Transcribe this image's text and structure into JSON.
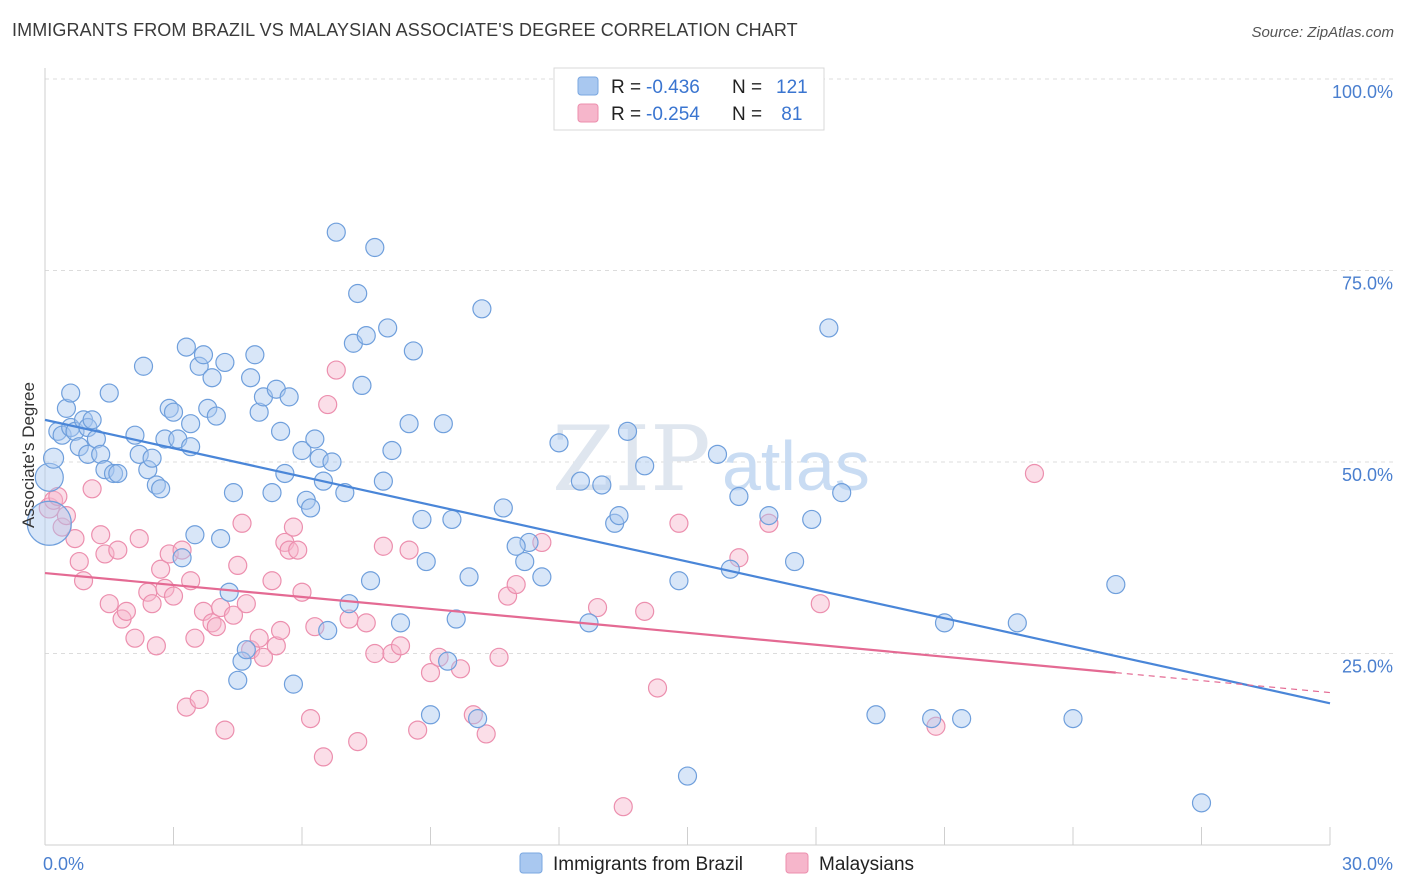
{
  "header": {
    "title": "IMMIGRANTS FROM BRAZIL VS MALAYSIAN ASSOCIATE'S DEGREE CORRELATION CHART",
    "source": "Source: ZipAtlas.com"
  },
  "watermark": {
    "zip": "ZIP",
    "atlas": "atlas"
  },
  "legend": {
    "rows": [
      {
        "r_label": "R =",
        "r_value": "-0.436",
        "n_label": "N =",
        "n_value": "121",
        "color": "#a9c8f0"
      },
      {
        "r_label": "R =",
        "r_value": "-0.254",
        "n_label": "N =",
        "n_value": " 81",
        "color": "#f6b6cb"
      }
    ]
  },
  "bottom_legend": {
    "items": [
      {
        "label": "Immigrants from Brazil",
        "color": "#a9c8f0"
      },
      {
        "label": "Malaysians",
        "color": "#f6b6cb"
      }
    ]
  },
  "chart_data": {
    "type": "scatter",
    "title": "IMMIGRANTS FROM BRAZIL VS MALAYSIAN ASSOCIATE'S DEGREE CORRELATION CHART",
    "xlabel": "",
    "ylabel": "Associate's Degree",
    "xlim": [
      0,
      30
    ],
    "ylim": [
      0,
      100
    ],
    "x_tick_labels": [
      "0.0%",
      "30.0%"
    ],
    "y_tick_labels": [
      "100.0%",
      "75.0%",
      "50.0%",
      "25.0%"
    ],
    "y_ticks": [
      100,
      75,
      50,
      25
    ],
    "grid": true,
    "legend_position": "top-center",
    "colors": {
      "brazil": "#4a86d8",
      "brazil_fill": "#a9c8f0",
      "malaysian": "#e46a93",
      "malaysian_fill": "#f6b6cb"
    },
    "series": [
      {
        "name": "Immigrants from Brazil",
        "trend": {
          "x": [
            0,
            30
          ],
          "y": [
            55.5,
            18.5
          ]
        },
        "points": [
          [
            0.1,
            42,
            22
          ],
          [
            0.1,
            48,
            14
          ],
          [
            0.2,
            50.5,
            10
          ],
          [
            0.3,
            54,
            9
          ],
          [
            0.4,
            53.5,
            9
          ],
          [
            0.5,
            57,
            9
          ],
          [
            0.6,
            54.5,
            9
          ],
          [
            0.6,
            59,
            9
          ],
          [
            0.7,
            54,
            9
          ],
          [
            0.8,
            52,
            9
          ],
          [
            0.9,
            55.5,
            9
          ],
          [
            1.0,
            54.5,
            9
          ],
          [
            1.0,
            51,
            9
          ],
          [
            1.1,
            55.5,
            9
          ],
          [
            1.2,
            53,
            9
          ],
          [
            1.3,
            51,
            9
          ],
          [
            1.4,
            49,
            9
          ],
          [
            1.5,
            59,
            9
          ],
          [
            1.6,
            48.5,
            9
          ],
          [
            1.7,
            48.5,
            9
          ],
          [
            2.1,
            53.5,
            9
          ],
          [
            2.2,
            51,
            9
          ],
          [
            2.3,
            62.5,
            9
          ],
          [
            2.4,
            49,
            9
          ],
          [
            2.5,
            50.5,
            9
          ],
          [
            2.6,
            47,
            9
          ],
          [
            2.7,
            46.5,
            9
          ],
          [
            2.8,
            53,
            9
          ],
          [
            2.9,
            57,
            9
          ],
          [
            3.0,
            56.5,
            9
          ],
          [
            3.1,
            53,
            9
          ],
          [
            3.2,
            37.5,
            9
          ],
          [
            3.3,
            65,
            9
          ],
          [
            3.4,
            55,
            9
          ],
          [
            3.4,
            52,
            9
          ],
          [
            3.5,
            40.5,
            9
          ],
          [
            3.6,
            62.5,
            9
          ],
          [
            3.7,
            64,
            9
          ],
          [
            3.8,
            57,
            9
          ],
          [
            3.9,
            61,
            9
          ],
          [
            4.0,
            56,
            9
          ],
          [
            4.1,
            40,
            9
          ],
          [
            4.2,
            63,
            9
          ],
          [
            4.3,
            33,
            9
          ],
          [
            4.4,
            46,
            9
          ],
          [
            4.5,
            21.5,
            9
          ],
          [
            4.6,
            24,
            9
          ],
          [
            4.7,
            25.5,
            9
          ],
          [
            4.8,
            61,
            9
          ],
          [
            4.9,
            64,
            9
          ],
          [
            5.0,
            56.5,
            9
          ],
          [
            5.1,
            58.5,
            9
          ],
          [
            5.3,
            46,
            9
          ],
          [
            5.4,
            59.5,
            9
          ],
          [
            5.5,
            54,
            9
          ],
          [
            5.6,
            48.5,
            9
          ],
          [
            5.7,
            58.5,
            9
          ],
          [
            5.8,
            21,
            9
          ],
          [
            6.0,
            51.5,
            9
          ],
          [
            6.1,
            45,
            9
          ],
          [
            6.2,
            44,
            9
          ],
          [
            6.3,
            53,
            9
          ],
          [
            6.4,
            50.5,
            9
          ],
          [
            6.5,
            47.5,
            9
          ],
          [
            6.6,
            28,
            9
          ],
          [
            6.7,
            50,
            9
          ],
          [
            6.8,
            80,
            9
          ],
          [
            7.0,
            46,
            9
          ],
          [
            7.1,
            31.5,
            9
          ],
          [
            7.2,
            65.5,
            9
          ],
          [
            7.3,
            72,
            9
          ],
          [
            7.4,
            60,
            9
          ],
          [
            7.5,
            66.5,
            9
          ],
          [
            7.6,
            34.5,
            9
          ],
          [
            7.7,
            78,
            9
          ],
          [
            7.9,
            47.5,
            9
          ],
          [
            8.0,
            67.5,
            9
          ],
          [
            8.1,
            51.5,
            9
          ],
          [
            8.3,
            29,
            9
          ],
          [
            8.5,
            55,
            9
          ],
          [
            8.6,
            64.5,
            9
          ],
          [
            8.8,
            42.5,
            9
          ],
          [
            8.9,
            37,
            9
          ],
          [
            9.0,
            17,
            9
          ],
          [
            9.3,
            55,
            9
          ],
          [
            9.5,
            42.5,
            9
          ],
          [
            9.6,
            29.5,
            9
          ],
          [
            9.9,
            35,
            9
          ],
          [
            10.1,
            16.5,
            9
          ],
          [
            10.2,
            70,
            9
          ],
          [
            10.7,
            44,
            9
          ],
          [
            11.2,
            37,
            9
          ],
          [
            11.3,
            39.5,
            9
          ],
          [
            11.6,
            35,
            9
          ],
          [
            12.0,
            52.5,
            9
          ],
          [
            12.5,
            47.5,
            9
          ],
          [
            12.7,
            29,
            9
          ],
          [
            13.0,
            47,
            9
          ],
          [
            13.3,
            42,
            9
          ],
          [
            13.6,
            54,
            9
          ],
          [
            14.0,
            49.5,
            9
          ],
          [
            14.8,
            34.5,
            9
          ],
          [
            15.0,
            9,
            9
          ],
          [
            15.7,
            51,
            9
          ],
          [
            16.2,
            45.5,
            9
          ],
          [
            16.9,
            43,
            9
          ],
          [
            17.5,
            37,
            9
          ],
          [
            17.9,
            42.5,
            9
          ],
          [
            18.3,
            67.5,
            9
          ],
          [
            18.6,
            46,
            9
          ],
          [
            19.4,
            17,
            9
          ],
          [
            20.7,
            16.5,
            9
          ],
          [
            21.0,
            29,
            9
          ],
          [
            21.4,
            16.5,
            9
          ],
          [
            22.7,
            29,
            9
          ],
          [
            24.0,
            16.5,
            9
          ],
          [
            25.0,
            34,
            9
          ],
          [
            27.0,
            5.5,
            9
          ],
          [
            9.4,
            24,
            9
          ],
          [
            11.0,
            39,
            9
          ],
          [
            13.4,
            43,
            9
          ],
          [
            16.0,
            36,
            9
          ]
        ]
      },
      {
        "name": "Malaysians",
        "trend": {
          "x": [
            0,
            25
          ],
          "y": [
            35.5,
            22.5
          ]
        },
        "points": [
          [
            0.1,
            44,
            10
          ],
          [
            0.2,
            45,
            9
          ],
          [
            0.3,
            45.5,
            9
          ],
          [
            0.4,
            41.5,
            9
          ],
          [
            0.5,
            43,
            9
          ],
          [
            0.7,
            40,
            9
          ],
          [
            0.8,
            37,
            9
          ],
          [
            0.9,
            34.5,
            9
          ],
          [
            1.1,
            46.5,
            9
          ],
          [
            1.3,
            40.5,
            9
          ],
          [
            1.4,
            38,
            9
          ],
          [
            1.5,
            31.5,
            9
          ],
          [
            1.7,
            38.5,
            9
          ],
          [
            1.8,
            29.5,
            9
          ],
          [
            1.9,
            30.5,
            9
          ],
          [
            2.1,
            27,
            9
          ],
          [
            2.2,
            40,
            9
          ],
          [
            2.4,
            33,
            9
          ],
          [
            2.5,
            31.5,
            9
          ],
          [
            2.6,
            26,
            9
          ],
          [
            2.7,
            36,
            9
          ],
          [
            2.8,
            33.5,
            9
          ],
          [
            2.9,
            38,
            9
          ],
          [
            3.0,
            32.5,
            9
          ],
          [
            3.2,
            38.5,
            9
          ],
          [
            3.3,
            18,
            9
          ],
          [
            3.4,
            34.5,
            9
          ],
          [
            3.5,
            27,
            9
          ],
          [
            3.6,
            19,
            9
          ],
          [
            3.7,
            30.5,
            9
          ],
          [
            3.9,
            29,
            9
          ],
          [
            4.0,
            28.5,
            9
          ],
          [
            4.1,
            31,
            9
          ],
          [
            4.2,
            15,
            9
          ],
          [
            4.4,
            30,
            9
          ],
          [
            4.5,
            36.5,
            9
          ],
          [
            4.6,
            42,
            9
          ],
          [
            4.7,
            31.5,
            9
          ],
          [
            4.8,
            25.5,
            9
          ],
          [
            5.0,
            27,
            9
          ],
          [
            5.1,
            24.5,
            9
          ],
          [
            5.3,
            34.5,
            9
          ],
          [
            5.4,
            26,
            9
          ],
          [
            5.5,
            28,
            9
          ],
          [
            5.6,
            39.5,
            9
          ],
          [
            5.7,
            38.5,
            9
          ],
          [
            5.8,
            41.5,
            9
          ],
          [
            5.9,
            38.5,
            9
          ],
          [
            6.0,
            33,
            9
          ],
          [
            6.2,
            16.5,
            9
          ],
          [
            6.3,
            28.5,
            9
          ],
          [
            6.5,
            11.5,
            9
          ],
          [
            6.6,
            57.5,
            9
          ],
          [
            6.8,
            62,
            9
          ],
          [
            7.1,
            29.5,
            9
          ],
          [
            7.3,
            13.5,
            9
          ],
          [
            7.5,
            29,
            9
          ],
          [
            7.7,
            25,
            9
          ],
          [
            7.9,
            39,
            9
          ],
          [
            8.1,
            25,
            9
          ],
          [
            8.3,
            26,
            9
          ],
          [
            8.5,
            38.5,
            9
          ],
          [
            8.7,
            15,
            9
          ],
          [
            9.0,
            22.5,
            9
          ],
          [
            9.2,
            24.5,
            9
          ],
          [
            9.7,
            23,
            9
          ],
          [
            10.0,
            17,
            9
          ],
          [
            10.3,
            14.5,
            9
          ],
          [
            10.6,
            24.5,
            9
          ],
          [
            10.8,
            32.5,
            9
          ],
          [
            11.0,
            34,
            9
          ],
          [
            11.6,
            39.5,
            9
          ],
          [
            12.9,
            31,
            9
          ],
          [
            13.5,
            5,
            9
          ],
          [
            14.0,
            30.5,
            9
          ],
          [
            14.3,
            20.5,
            9
          ],
          [
            14.8,
            42,
            9
          ],
          [
            16.2,
            37.5,
            9
          ],
          [
            16.9,
            42,
            9
          ],
          [
            18.1,
            31.5,
            9
          ],
          [
            20.8,
            15.5,
            9
          ],
          [
            23.1,
            48.5,
            9
          ]
        ]
      }
    ]
  }
}
